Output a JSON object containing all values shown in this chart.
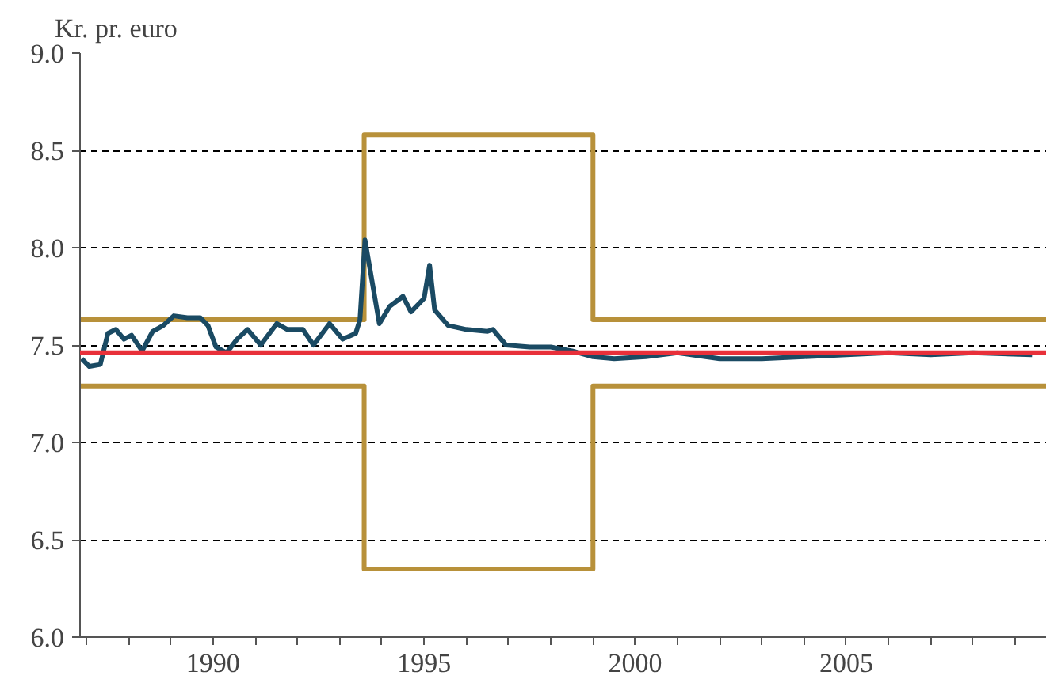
{
  "chart_data": {
    "type": "line",
    "ylabel": "Kr. pr. euro",
    "xlim": [
      1986.85,
      2009.75
    ],
    "ylim": [
      6.0,
      9.0
    ],
    "xticks": [
      {
        "value": 1987,
        "label": null
      },
      {
        "value": 1988,
        "label": null
      },
      {
        "value": 1989,
        "label": null
      },
      1990,
      {
        "value": 1991,
        "label": null
      },
      {
        "value": 1992,
        "label": null
      },
      {
        "value": 1993,
        "label": null
      },
      {
        "value": 1994,
        "label": null
      },
      1995,
      {
        "value": 1996,
        "label": null
      },
      {
        "value": 1997,
        "label": null
      },
      {
        "value": 1998,
        "label": null
      },
      {
        "value": 1999,
        "label": null
      },
      2000,
      {
        "value": 2001,
        "label": null
      },
      {
        "value": 2002,
        "label": null
      },
      {
        "value": 2003,
        "label": null
      },
      {
        "value": 2004,
        "label": null
      },
      2005,
      {
        "value": 2006,
        "label": null
      },
      {
        "value": 2007,
        "label": null
      },
      {
        "value": 2008,
        "label": null
      },
      {
        "value": 2009,
        "label": null
      }
    ],
    "yticks": [
      {
        "value": 6.0,
        "label": "6.0"
      },
      {
        "value": 6.5,
        "label": "6.5"
      },
      {
        "value": 7.0,
        "label": "7.0"
      },
      {
        "value": 7.5,
        "label": "7.5"
      },
      {
        "value": 8.0,
        "label": "8.0"
      },
      {
        "value": 8.5,
        "label": "8.5"
      },
      {
        "value": 9.0,
        "label": "9.0"
      }
    ],
    "grid": "y",
    "line_style": "solid",
    "series": [
      {
        "color": "#b8913a",
        "x": [
          1986.85,
          1993.58,
          1993.58,
          1999.0,
          1999.0,
          2009.75
        ],
        "values": [
          7.63,
          7.63,
          8.58,
          8.58,
          7.63,
          7.63
        ]
      },
      {
        "color": "#b8913a",
        "x": [
          1986.85,
          1993.58,
          1993.58,
          1999.0,
          1999.0,
          2009.75
        ],
        "values": [
          7.29,
          7.29,
          6.35,
          6.35,
          7.29,
          7.29
        ]
      },
      {
        "color": "#1a4a63",
        "x": [
          1986.89,
          1987.07,
          1987.33,
          1987.51,
          1987.7,
          1987.89,
          1988.07,
          1988.32,
          1988.57,
          1988.82,
          1989.07,
          1989.39,
          1989.7,
          1989.88,
          1990.07,
          1990.32,
          1990.57,
          1990.82,
          1991.13,
          1991.51,
          1991.76,
          1992.13,
          1992.38,
          1992.76,
          1993.07,
          1993.38,
          1993.48,
          1993.6,
          1993.94,
          1994.19,
          1994.5,
          1994.69,
          1995.0,
          1995.13,
          1995.25,
          1995.57,
          1996.0,
          1996.5,
          1996.63,
          1996.94,
          1997.5,
          1998.0,
          1998.5,
          1999.0,
          1999.5,
          2000.25,
          2001.0,
          2002.0,
          2003.0,
          2004.0,
          2005.0,
          2006.0,
          2007.0,
          2008.0,
          2009.4
        ],
        "values": [
          7.43,
          7.39,
          7.4,
          7.56,
          7.58,
          7.53,
          7.55,
          7.47,
          7.57,
          7.6,
          7.65,
          7.64,
          7.64,
          7.6,
          7.49,
          7.46,
          7.53,
          7.58,
          7.5,
          7.61,
          7.58,
          7.58,
          7.5,
          7.61,
          7.53,
          7.56,
          7.63,
          8.04,
          7.61,
          7.7,
          7.75,
          7.67,
          7.74,
          7.91,
          7.68,
          7.6,
          7.58,
          7.57,
          7.58,
          7.5,
          7.49,
          7.49,
          7.47,
          7.44,
          7.43,
          7.44,
          7.46,
          7.43,
          7.43,
          7.44,
          7.45,
          7.46,
          7.45,
          7.46,
          7.45
        ]
      }
    ],
    "ref_lines": [
      {
        "axis": "y",
        "value": 7.46,
        "color": "#e8303a",
        "line_style": "solid"
      }
    ]
  }
}
